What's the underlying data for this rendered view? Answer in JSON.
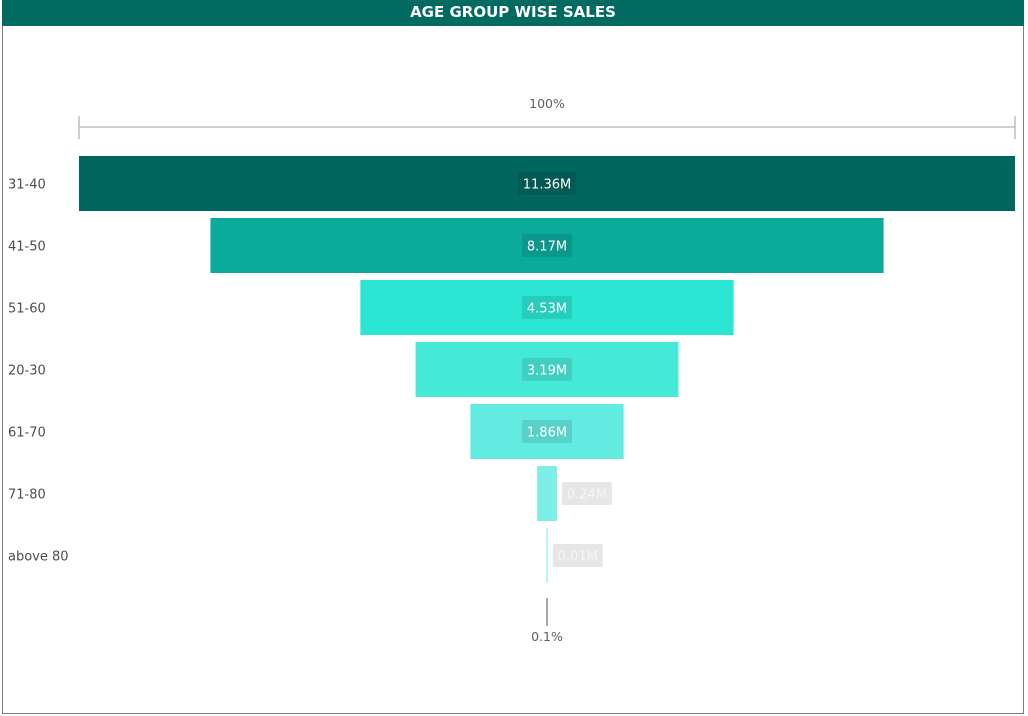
{
  "title": "AGE GROUP WISE SALES",
  "colors": {
    "title_bg": "#016b61",
    "title_text": "#ffffff",
    "scale_line": "#bdbdbd",
    "outside_label_bg": "#e6e6e6",
    "outside_label_text": "#f5f5f5"
  },
  "chart_data": {
    "type": "funnel",
    "title": "AGE GROUP WISE SALES",
    "categories": [
      "31-40",
      "41-50",
      "51-60",
      "20-30",
      "61-70",
      "71-80",
      "above 80"
    ],
    "values": [
      11.36,
      8.17,
      4.53,
      3.19,
      1.86,
      0.24,
      0.01
    ],
    "value_labels": [
      "11.36M",
      "8.17M",
      "4.53M",
      "3.19M",
      "1.86M",
      "0.24M",
      "0.01M"
    ],
    "unit": "M",
    "bar_colors": [
      "#01665e",
      "#0aab9b",
      "#2ae6d3",
      "#46e9d8",
      "#62ece1",
      "#7eefe6",
      "#9cf3ec"
    ],
    "label_box_colors": [
      "#015a53",
      "#099889",
      "#26cdbc",
      "#3fd0c1",
      "#58d2c8",
      "#e6e6e6",
      "#e6e6e6"
    ],
    "top_scale_label": "100%",
    "bottom_scale_label": "0.1%"
  }
}
